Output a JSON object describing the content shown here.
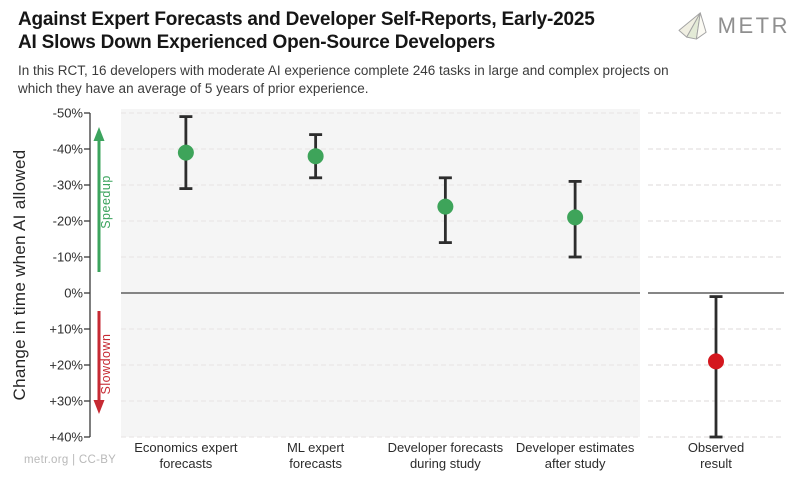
{
  "header": {
    "title_line1": "Against Expert Forecasts and Developer Self-Reports, Early-2025",
    "title_line2": "AI Slows Down Experienced Open-Source Developers",
    "subtitle": "In this RCT, 16 developers with moderate AI experience complete 246 tasks in large and complex projects on which they have an average of 5 years of prior experience.",
    "logo_text": "METR"
  },
  "footer": {
    "credit": "metr.org | CC-BY"
  },
  "colors": {
    "forecast_green": "#3ea45a",
    "observed_red": "#d4171e",
    "speedup_arrow_green": "#3ca45e",
    "slowdown_arrow_red": "#c62a33",
    "error_bar": "#2d2d2d",
    "panel_gray": "#f5f5f5",
    "zero_line": "#5e5e5e",
    "grid_gray": "#e9e7e7"
  },
  "chart_data": {
    "type": "scatter",
    "subtype": "point-estimates-with-error-bars",
    "title": "",
    "xlabel": "",
    "ylabel": "Change in time when AI allowed",
    "y_axis_reversed": true,
    "ylim": [
      -50,
      40
    ],
    "yticks": [
      -50,
      -40,
      -30,
      -20,
      -10,
      0,
      10,
      20,
      30,
      40
    ],
    "ytick_labels": [
      "-50%",
      "-40%",
      "-30%",
      "-20%",
      "-10%",
      "0%",
      "+10%",
      "+20%",
      "+30%",
      "+40%"
    ],
    "grid": "dashed horizontal gridlines at each 10% tick; solid dark line at 0%",
    "legend_position": "none",
    "annotations": {
      "speedup": {
        "label": "Speedup",
        "direction": "up",
        "color": "#3ca45e"
      },
      "slowdown": {
        "label": "Slowdown",
        "direction": "down",
        "color": "#c62a33"
      }
    },
    "points": [
      {
        "category": "Economics expert\nforecasts",
        "mean": -39,
        "ci_low": -49,
        "ci_high": -29,
        "color": "#3ea45a",
        "group": "forecast"
      },
      {
        "category": "ML expert\nforecasts",
        "mean": -38,
        "ci_low": -44,
        "ci_high": -32,
        "color": "#3ea45a",
        "group": "forecast"
      },
      {
        "category": "Developer forecasts\nduring study",
        "mean": -24,
        "ci_low": -32,
        "ci_high": -14,
        "color": "#3ea45a",
        "group": "forecast"
      },
      {
        "category": "Developer estimates\nafter study",
        "mean": -21,
        "ci_low": -31,
        "ci_high": -10,
        "color": "#3ea45a",
        "group": "forecast"
      },
      {
        "category": "Observed\nresult",
        "mean": 19,
        "ci_low": 1,
        "ci_high": 40,
        "color": "#d4171e",
        "group": "observed"
      }
    ],
    "units": "percent change in task completion time when AI is allowed (negative = speedup, positive = slowdown)"
  }
}
